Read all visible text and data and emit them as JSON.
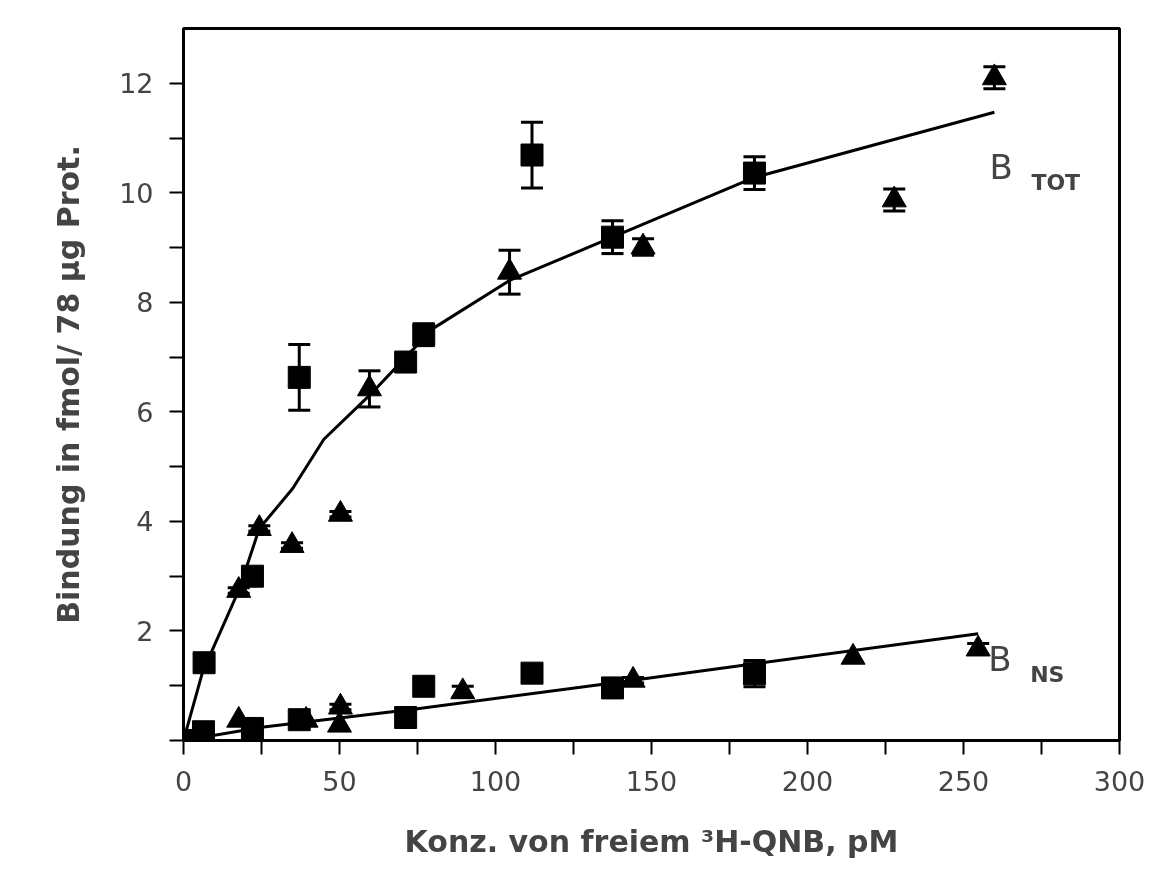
{
  "chart_data": {
    "type": "scatter",
    "xlabel": "Konz. von freiem ³H-QNB, pM",
    "ylabel": "Bindung in fmol/ 78 µg Prot.",
    "xlim": [
      0,
      300
    ],
    "ylim": [
      0,
      13
    ],
    "xticks": [
      0,
      {
        "value": 25,
        "label": null
      },
      50,
      {
        "value": 75,
        "label": null
      },
      100,
      {
        "value": 125,
        "label": null
      },
      150,
      {
        "value": 175,
        "label": null
      },
      200,
      {
        "value": 225,
        "label": null
      },
      250,
      {
        "value": 275,
        "label": null
      },
      300
    ],
    "yticks": [
      {
        "value": 0,
        "label": null
      },
      {
        "value": 1,
        "label": null
      },
      2,
      {
        "value": 3,
        "label": null
      },
      4,
      {
        "value": 5,
        "label": null
      },
      6,
      {
        "value": 7,
        "label": null
      },
      8,
      {
        "value": 9,
        "label": null
      },
      10,
      {
        "value": 11,
        "label": null
      },
      12
    ],
    "grid": false,
    "series": [
      {
        "marker": "square",
        "color": "#000000",
        "x": [
          0,
          6.6,
          22.1,
          37.1,
          71.2,
          77.0,
          111.7,
          137.5,
          183.0
        ],
        "values": [
          0,
          1.42,
          3.0,
          6.63,
          6.91,
          7.41,
          10.69,
          9.19,
          10.36
        ],
        "errors": [
          null,
          null,
          null,
          0.6,
          null,
          0.2,
          0.6,
          0.3,
          0.3
        ]
      },
      {
        "marker": "triangle",
        "color": "#000000",
        "x": [
          17.7,
          24.3,
          34.8,
          50.3,
          59.6,
          104.5,
          147.3,
          227.8,
          259.9
        ],
        "values": [
          2.74,
          3.87,
          3.56,
          4.13,
          6.42,
          8.55,
          9.01,
          9.87,
          12.1
        ],
        "errors": [
          0.05,
          0.05,
          0.05,
          0.05,
          0.33,
          0.4,
          0.15,
          0.2,
          0.2
        ]
      },
      {
        "marker": "square",
        "color": "#000000",
        "x": [
          6.4,
          22.1,
          37.1,
          71.2,
          77.0,
          111.7,
          137.5,
          183.0
        ],
        "values": [
          0.16,
          0.22,
          0.38,
          0.42,
          0.99,
          1.23,
          0.96,
          1.22
        ],
        "errors": [
          null,
          null,
          null,
          null,
          null,
          null,
          null,
          0.24
        ]
      },
      {
        "marker": "triangle",
        "color": "#000000",
        "x": [
          17.7,
          39.3,
          50.3,
          50.0,
          89.5,
          144.1,
          214.6,
          254.7
        ],
        "values": [
          0.37,
          0.37,
          0.61,
          0.28,
          0.89,
          1.1,
          1.52,
          1.67
        ],
        "errors": [
          null,
          null,
          0.05,
          null,
          0.1,
          0.05,
          null,
          0.1
        ]
      },
      {
        "type": "line",
        "line_style": "solid",
        "color": "#000000",
        "x": [
          0,
          6.1,
          17.7,
          24.3,
          35.0,
          45.0,
          59.6,
          79.9,
          104.5,
          137.5,
          183.0,
          259.9
        ],
        "values": [
          0,
          1.25,
          2.74,
          3.87,
          4.6,
          5.5,
          6.3,
          7.52,
          8.4,
          9.19,
          10.28,
          11.47
        ]
      },
      {
        "type": "line",
        "line_style": "solid",
        "color": "#000000",
        "x": [
          0,
          25,
          75,
          140,
          183,
          254.7
        ],
        "values": [
          0,
          0.24,
          0.58,
          1.07,
          1.4,
          1.95
        ]
      }
    ],
    "annotations": [
      "B$_{TOT}$",
      "B$_{NS}$"
    ]
  }
}
